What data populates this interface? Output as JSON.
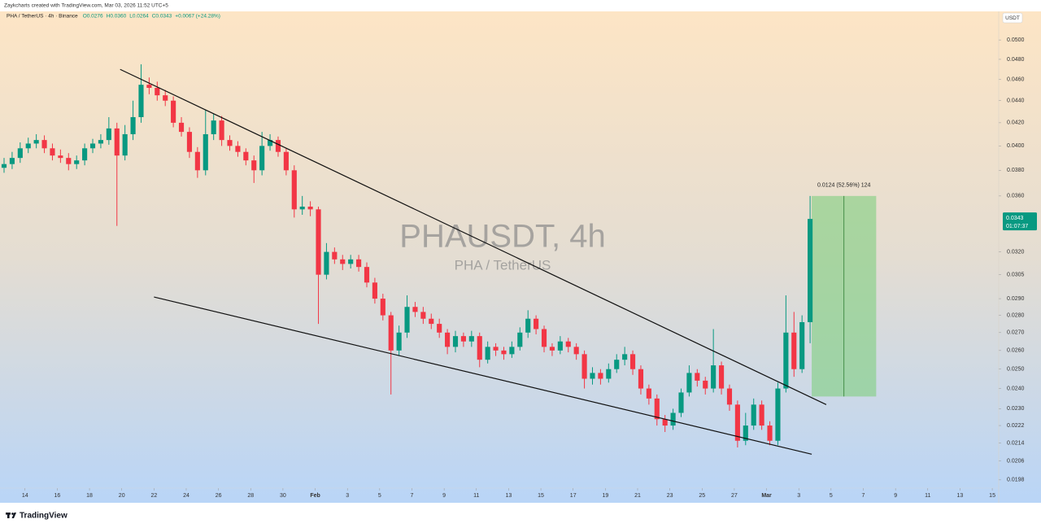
{
  "chart_data": {
    "type": "candlestick",
    "credit": "Zaykcharts created with TradingView.com, Mar 03, 2026 11:52 UTC+5",
    "legend_symbol": "PHA / TetherUS · 4h · Binance",
    "legend_items": [
      "O0.0276",
      "H0.0360",
      "L0.0264",
      "C0.0343",
      "+0.0067 (+24.28%)"
    ],
    "watermark_title": "PHAUSDT, 4h",
    "watermark_subtitle": "PHA / TetherUS",
    "currency": "USDT",
    "last_price": 0.0343,
    "countdown": "01:07:37",
    "brand": "TradingView",
    "log_scale": true,
    "up_color": "#089981",
    "down_color": "#f23645",
    "xlim": [
      12.7,
      74.4
    ],
    "ylim": [
      0.0189,
      0.0531
    ],
    "xticks": [
      14,
      16,
      18,
      20,
      22,
      24,
      26,
      28,
      30,
      {
        "value": 32,
        "label": "Feb"
      },
      {
        "value": 34,
        "label": "3"
      },
      {
        "value": 36,
        "label": "5"
      },
      {
        "value": 38,
        "label": "7"
      },
      {
        "value": 40,
        "label": "9"
      },
      {
        "value": 42,
        "label": "11"
      },
      {
        "value": 44,
        "label": "13"
      },
      {
        "value": 46,
        "label": "15"
      },
      {
        "value": 48,
        "label": "17"
      },
      {
        "value": 50,
        "label": "19"
      },
      {
        "value": 52,
        "label": "21"
      },
      {
        "value": 54,
        "label": "23"
      },
      {
        "value": 56,
        "label": "25"
      },
      {
        "value": 58,
        "label": "27"
      },
      {
        "value": 60,
        "label": "Mar"
      },
      {
        "value": 62,
        "label": "3"
      },
      {
        "value": 64,
        "label": "5"
      },
      {
        "value": 66,
        "label": "7"
      },
      {
        "value": 68,
        "label": "9"
      },
      {
        "value": 70,
        "label": "11"
      },
      {
        "value": 72,
        "label": "13"
      },
      {
        "value": 74,
        "label": "15"
      }
    ],
    "yticks": [
      {
        "value": 0.05,
        "label": "0.0500"
      },
      {
        "value": 0.048,
        "label": "0.0480"
      },
      {
        "value": 0.046,
        "label": "0.0460"
      },
      {
        "value": 0.044,
        "label": "0.0440"
      },
      {
        "value": 0.042,
        "label": "0.0420"
      },
      {
        "value": 0.04,
        "label": "0.0400"
      },
      {
        "value": 0.038,
        "label": "0.0380"
      },
      {
        "value": 0.036,
        "label": "0.0360"
      },
      {
        "value": 0.032,
        "label": "0.0320"
      },
      {
        "value": 0.0305,
        "label": "0.0305"
      },
      {
        "value": 0.029,
        "label": "0.0290"
      },
      {
        "value": 0.028,
        "label": "0.0280"
      },
      {
        "value": 0.027,
        "label": "0.0270"
      },
      {
        "value": 0.026,
        "label": "0.0260"
      },
      {
        "value": 0.025,
        "label": "0.0250"
      },
      {
        "value": 0.024,
        "label": "0.0240"
      },
      {
        "value": 0.023,
        "label": "0.0230"
      },
      {
        "value": 0.0222,
        "label": "0.0222"
      },
      {
        "value": 0.0214,
        "label": "0.0214"
      },
      {
        "value": 0.0206,
        "label": "0.0206"
      },
      {
        "value": 0.0198,
        "label": "0.0198"
      }
    ],
    "x": [
      12.7,
      13.2,
      13.7,
      14.2,
      14.7,
      15.2,
      15.7,
      16.2,
      16.7,
      17.2,
      17.7,
      18.2,
      18.7,
      19.2,
      19.7,
      20.2,
      20.7,
      21.2,
      21.7,
      22.2,
      22.7,
      23.2,
      23.7,
      24.2,
      24.7,
      25.2,
      25.7,
      26.2,
      26.7,
      27.2,
      27.7,
      28.2,
      28.7,
      29.2,
      29.7,
      30.2,
      30.7,
      31.2,
      31.7,
      32.2,
      32.7,
      33.2,
      33.7,
      34.2,
      34.7,
      35.2,
      35.7,
      36.2,
      36.7,
      37.2,
      37.7,
      38.2,
      38.7,
      39.2,
      39.7,
      40.2,
      40.7,
      41.2,
      41.7,
      42.2,
      42.7,
      43.2,
      43.7,
      44.2,
      44.7,
      45.2,
      45.7,
      46.2,
      46.7,
      47.2,
      47.7,
      48.2,
      48.7,
      49.2,
      49.7,
      50.2,
      50.7,
      51.2,
      51.7,
      52.2,
      52.7,
      53.2,
      53.7,
      54.2,
      54.7,
      55.2,
      55.7,
      56.2,
      56.7,
      57.2,
      57.7,
      58.2,
      58.7,
      59.2,
      59.7,
      60.2,
      60.7,
      61.2,
      61.7,
      62.2,
      62.7
    ],
    "open": [
      0.0382,
      0.0385,
      0.039,
      0.0398,
      0.0402,
      0.0405,
      0.0398,
      0.0392,
      0.039,
      0.0385,
      0.0388,
      0.0398,
      0.0402,
      0.0405,
      0.0415,
      0.0392,
      0.041,
      0.0425,
      0.0455,
      0.0452,
      0.0445,
      0.044,
      0.042,
      0.0412,
      0.0395,
      0.038,
      0.041,
      0.0422,
      0.0405,
      0.04,
      0.0395,
      0.0388,
      0.038,
      0.04,
      0.0405,
      0.0395,
      0.038,
      0.035,
      0.0352,
      0.035,
      0.0305,
      0.032,
      0.0315,
      0.0312,
      0.0315,
      0.031,
      0.03,
      0.029,
      0.028,
      0.026,
      0.027,
      0.0285,
      0.0282,
      0.0278,
      0.0275,
      0.027,
      0.0262,
      0.0268,
      0.0265,
      0.0268,
      0.0255,
      0.0262,
      0.026,
      0.0258,
      0.0262,
      0.027,
      0.0278,
      0.0272,
      0.0262,
      0.026,
      0.0265,
      0.0262,
      0.0258,
      0.0245,
      0.0248,
      0.0245,
      0.025,
      0.0255,
      0.0258,
      0.025,
      0.024,
      0.0235,
      0.0225,
      0.0222,
      0.0228,
      0.0238,
      0.0248,
      0.0244,
      0.024,
      0.0252,
      0.024,
      0.0232,
      0.0215,
      0.0222,
      0.0232,
      0.0222,
      0.0215,
      0.024,
      0.027,
      0.025,
      0.0276
    ],
    "high": [
      0.039,
      0.0395,
      0.0403,
      0.0407,
      0.041,
      0.0409,
      0.0402,
      0.0397,
      0.0394,
      0.0392,
      0.0402,
      0.0406,
      0.041,
      0.0425,
      0.042,
      0.0418,
      0.044,
      0.0475,
      0.0462,
      0.0458,
      0.045,
      0.0444,
      0.0425,
      0.0416,
      0.0399,
      0.0432,
      0.0428,
      0.0426,
      0.0409,
      0.0404,
      0.0398,
      0.0392,
      0.0412,
      0.041,
      0.0408,
      0.0398,
      0.0384,
      0.036,
      0.0356,
      0.0352,
      0.0326,
      0.0323,
      0.0318,
      0.0318,
      0.0318,
      0.0313,
      0.0303,
      0.0293,
      0.0282,
      0.0274,
      0.0292,
      0.0288,
      0.0285,
      0.0281,
      0.0278,
      0.0272,
      0.0271,
      0.027,
      0.0271,
      0.027,
      0.0265,
      0.0264,
      0.0262,
      0.0265,
      0.0273,
      0.0283,
      0.028,
      0.0274,
      0.0264,
      0.0268,
      0.0267,
      0.0264,
      0.026,
      0.0251,
      0.025,
      0.0253,
      0.0258,
      0.0262,
      0.026,
      0.0252,
      0.0242,
      0.0237,
      0.0227,
      0.023,
      0.024,
      0.0252,
      0.025,
      0.0246,
      0.0272,
      0.0254,
      0.0242,
      0.0234,
      0.0228,
      0.0235,
      0.0234,
      0.0224,
      0.0243,
      0.0292,
      0.0282,
      0.028,
      0.036
    ],
    "low": [
      0.0378,
      0.0381,
      0.0386,
      0.0394,
      0.0398,
      0.0394,
      0.0388,
      0.0386,
      0.038,
      0.0381,
      0.0384,
      0.0394,
      0.0398,
      0.0401,
      0.0338,
      0.0388,
      0.0405,
      0.042,
      0.0446,
      0.044,
      0.0435,
      0.0416,
      0.0408,
      0.039,
      0.0374,
      0.0376,
      0.0405,
      0.04,
      0.0396,
      0.0391,
      0.0384,
      0.037,
      0.0376,
      0.0396,
      0.0391,
      0.0376,
      0.0344,
      0.0346,
      0.0345,
      0.0275,
      0.0302,
      0.0312,
      0.0308,
      0.0309,
      0.0307,
      0.0297,
      0.0287,
      0.0277,
      0.0237,
      0.0257,
      0.0267,
      0.0279,
      0.0275,
      0.0272,
      0.0267,
      0.0258,
      0.0259,
      0.0262,
      0.0262,
      0.0251,
      0.0253,
      0.0257,
      0.0255,
      0.0256,
      0.026,
      0.0267,
      0.0269,
      0.0259,
      0.0257,
      0.0258,
      0.0259,
      0.0255,
      0.024,
      0.0242,
      0.0242,
      0.0243,
      0.0248,
      0.0252,
      0.0247,
      0.0237,
      0.0232,
      0.0222,
      0.0219,
      0.022,
      0.0226,
      0.0236,
      0.0241,
      0.0237,
      0.0238,
      0.0237,
      0.0229,
      0.0212,
      0.0213,
      0.022,
      0.022,
      0.0213,
      0.0213,
      0.0238,
      0.0246,
      0.0248,
      0.0264
    ],
    "close": [
      0.0385,
      0.039,
      0.0398,
      0.0402,
      0.0405,
      0.0398,
      0.0392,
      0.039,
      0.0385,
      0.0388,
      0.0398,
      0.0402,
      0.0405,
      0.0415,
      0.0392,
      0.041,
      0.0425,
      0.0455,
      0.0452,
      0.0445,
      0.044,
      0.042,
      0.0412,
      0.0395,
      0.038,
      0.041,
      0.0422,
      0.0405,
      0.04,
      0.0395,
      0.0388,
      0.038,
      0.04,
      0.0405,
      0.0395,
      0.038,
      0.035,
      0.0352,
      0.035,
      0.0305,
      0.032,
      0.0315,
      0.0312,
      0.0315,
      0.031,
      0.03,
      0.029,
      0.028,
      0.026,
      0.027,
      0.0285,
      0.0282,
      0.0278,
      0.0275,
      0.027,
      0.0262,
      0.0268,
      0.0265,
      0.0268,
      0.0255,
      0.0262,
      0.026,
      0.0258,
      0.0262,
      0.027,
      0.0278,
      0.0272,
      0.0262,
      0.026,
      0.0265,
      0.0262,
      0.0258,
      0.0245,
      0.0248,
      0.0245,
      0.025,
      0.0255,
      0.0258,
      0.025,
      0.024,
      0.0235,
      0.0225,
      0.0222,
      0.0228,
      0.0238,
      0.0248,
      0.0244,
      0.024,
      0.0252,
      0.024,
      0.0232,
      0.0215,
      0.0222,
      0.0232,
      0.0222,
      0.0215,
      0.024,
      0.027,
      0.025,
      0.0276,
      0.0343
    ],
    "trendlines": [
      {
        "x": [
          19.9,
          63.7
        ],
        "y": [
          0.047,
          0.0232
        ]
      },
      {
        "x": [
          22.0,
          62.8
        ],
        "y": [
          0.0291,
          0.0209
        ]
      }
    ],
    "measure": {
      "x": [
        62.8,
        66.8
      ],
      "y": [
        0.0236,
        0.036
      ],
      "label": "0.0124 (52.56%) 124"
    }
  }
}
